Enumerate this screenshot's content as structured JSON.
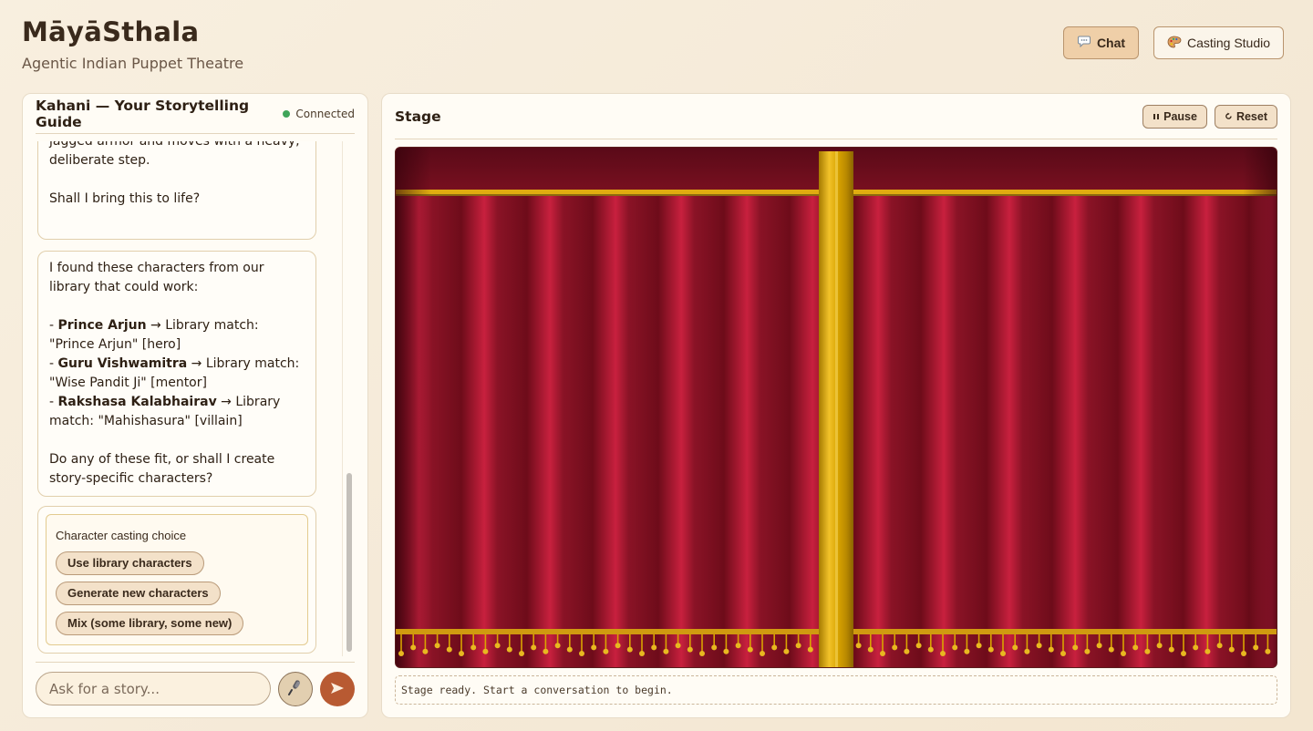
{
  "app": {
    "title": "MāyāSthala",
    "subtitle": "Agentic Indian Puppet Theatre"
  },
  "nav": {
    "chat_icon": "speech-bubble-icon",
    "chat_label": "Chat",
    "casting_icon": "palette-icon",
    "casting_label": "Casting Studio"
  },
  "chat": {
    "title": "Kahani — Your Storytelling Guide",
    "status": "Connected",
    "status_color": "#3fa55a",
    "messages": [
      {
        "text": "menacing expression. He wears dark, jagged armor and moves with a heavy, deliberate step.",
        "followup": "Shall I bring this to life?"
      },
      {
        "intro": "I found these characters from our library that could work:",
        "matches": [
          {
            "name": "Prince Arjun",
            "arrow": "→",
            "text": "Library match: \"Prince Arjun\" [hero]"
          },
          {
            "name": "Guru Vishwamitra",
            "arrow": "→",
            "text": "Library match: \"Wise Pandit Ji\" [mentor]"
          },
          {
            "name": "Rakshasa Kalabhairav",
            "arrow": "→",
            "text": "Library match: \"Mahishasura\" [villain]"
          }
        ],
        "question": "Do any of these fit, or shall I create story-specific characters?"
      }
    ],
    "choice": {
      "label": "Character casting choice",
      "options": [
        "Use library characters",
        "Generate new characters",
        "Mix (some library, some new)"
      ]
    },
    "input_placeholder": "Ask for a story...",
    "input_value": "",
    "mic_icon": "microphone-icon",
    "send_icon": "send-arrow-icon"
  },
  "stage": {
    "title": "Stage",
    "pause_label": "Pause",
    "reset_label": "Reset",
    "status_text": "Stage ready. Start a conversation to begin.",
    "curtain_color": "#8a1424",
    "gold_color": "#d9a400"
  }
}
